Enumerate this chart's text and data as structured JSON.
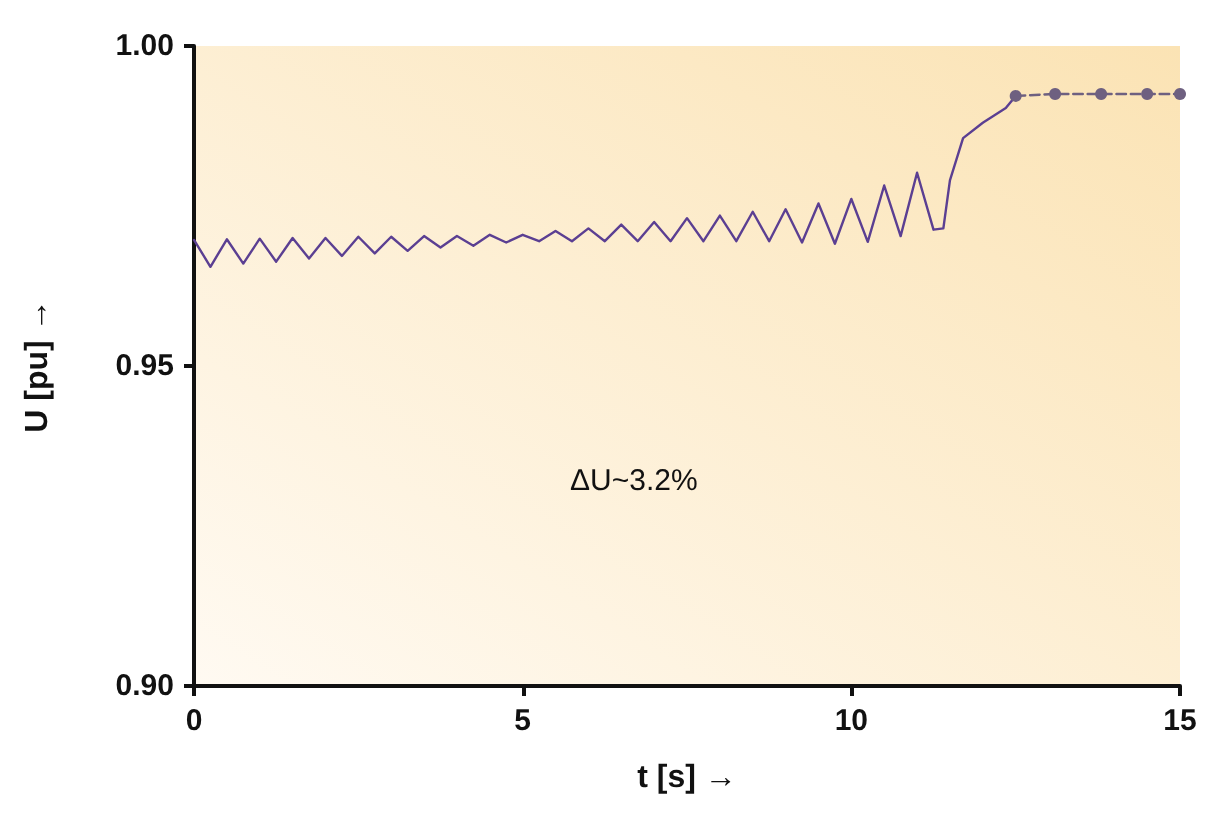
{
  "chart_data": {
    "type": "line",
    "xlabel": "t [s] →",
    "ylabel": "U [pu] →",
    "annotations": [
      "ΔU~3.2%"
    ],
    "xlim": [
      0,
      15
    ],
    "xticks": [
      0,
      5,
      10,
      15
    ],
    "ylim": [
      0.9,
      1.0
    ],
    "yticks": [
      {
        "value": 0.9,
        "label": "0.90"
      },
      {
        "value": 0.95,
        "label": "0.95"
      },
      {
        "value": 1.0,
        "label": "1.00"
      }
    ],
    "grid": false,
    "marker": "none",
    "line_style": "solid",
    "series": [
      {
        "color": "#5b3f92",
        "x": [
          0,
          0.25,
          0.5,
          0.75,
          1,
          1.25,
          1.5,
          1.75,
          2,
          2.25,
          2.5,
          2.75,
          3,
          3.25,
          3.5,
          3.75,
          4,
          4.25,
          4.5,
          4.75,
          5,
          5.25,
          5.5,
          5.75,
          6,
          6.25,
          6.5,
          6.75,
          7,
          7.25,
          7.5,
          7.75,
          8,
          8.25,
          8.5,
          8.75,
          9,
          9.25,
          9.5,
          9.75,
          10,
          10.25,
          10.5,
          10.75,
          11,
          11.25,
          11.4,
          11.5,
          11.7,
          12,
          12.35,
          12.5
        ],
        "values": [
          0.9697,
          0.9655,
          0.9698,
          0.966,
          0.9699,
          0.9663,
          0.97,
          0.9668,
          0.97,
          0.9672,
          0.9702,
          0.9676,
          0.9702,
          0.968,
          0.9703,
          0.9685,
          0.9703,
          0.9688,
          0.9705,
          0.9693,
          0.9705,
          0.9695,
          0.9711,
          0.9695,
          0.9715,
          0.9695,
          0.9721,
          0.9695,
          0.9725,
          0.9695,
          0.9731,
          0.9695,
          0.9735,
          0.9695,
          0.9741,
          0.9695,
          0.9745,
          0.9693,
          0.9754,
          0.9691,
          0.9761,
          0.9694,
          0.9782,
          0.9703,
          0.9802,
          0.9713,
          0.9715,
          0.979,
          0.9856,
          0.988,
          0.9903,
          0.9922
        ]
      },
      {
        "color": "#6e6080",
        "marker": "circle",
        "line_style": "dashed",
        "x": [
          12.5,
          13.1,
          13.8,
          14.5,
          15
        ],
        "values": [
          0.9922,
          0.9925,
          0.9925,
          0.9925,
          0.9925
        ]
      }
    ]
  }
}
